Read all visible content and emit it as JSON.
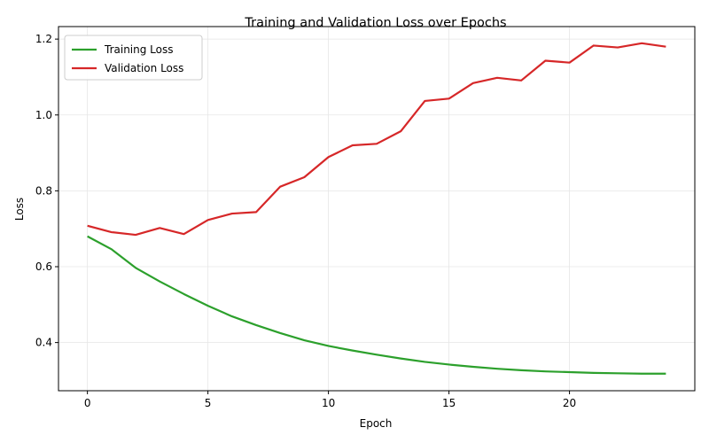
{
  "chart_data": {
    "type": "line",
    "title": "Training and Validation Loss over Epochs",
    "xlabel": "Epoch",
    "ylabel": "Loss",
    "xlim": [
      -1.2,
      25.2
    ],
    "ylim": [
      0.273,
      1.233
    ],
    "xticks": [
      0,
      5,
      10,
      15,
      20
    ],
    "yticks": [
      0.4,
      0.6,
      0.8,
      1.0,
      1.2
    ],
    "ytick_labels": [
      "0.4",
      "0.6",
      "0.8",
      "1.0",
      "1.2"
    ],
    "grid": true,
    "legend_position": "top-left",
    "x": [
      0,
      1,
      2,
      3,
      4,
      5,
      6,
      7,
      8,
      9,
      10,
      11,
      12,
      13,
      14,
      15,
      16,
      17,
      18,
      19,
      20,
      21,
      22,
      23,
      24
    ],
    "series": [
      {
        "name": "Training Loss",
        "color": "#2ca02c",
        "values": [
          0.68,
          0.646,
          0.597,
          0.561,
          0.528,
          0.497,
          0.469,
          0.446,
          0.425,
          0.406,
          0.391,
          0.379,
          0.368,
          0.358,
          0.349,
          0.342,
          0.336,
          0.331,
          0.327,
          0.324,
          0.322,
          0.32,
          0.319,
          0.318,
          0.318
        ]
      },
      {
        "name": "Validation Loss",
        "color": "#d62728",
        "values": [
          0.708,
          0.691,
          0.684,
          0.702,
          0.686,
          0.723,
          0.74,
          0.744,
          0.811,
          0.836,
          0.889,
          0.92,
          0.924,
          0.957,
          1.037,
          1.043,
          1.084,
          1.098,
          1.091,
          1.143,
          1.138,
          1.183,
          1.178,
          1.189,
          1.18
        ]
      }
    ]
  }
}
